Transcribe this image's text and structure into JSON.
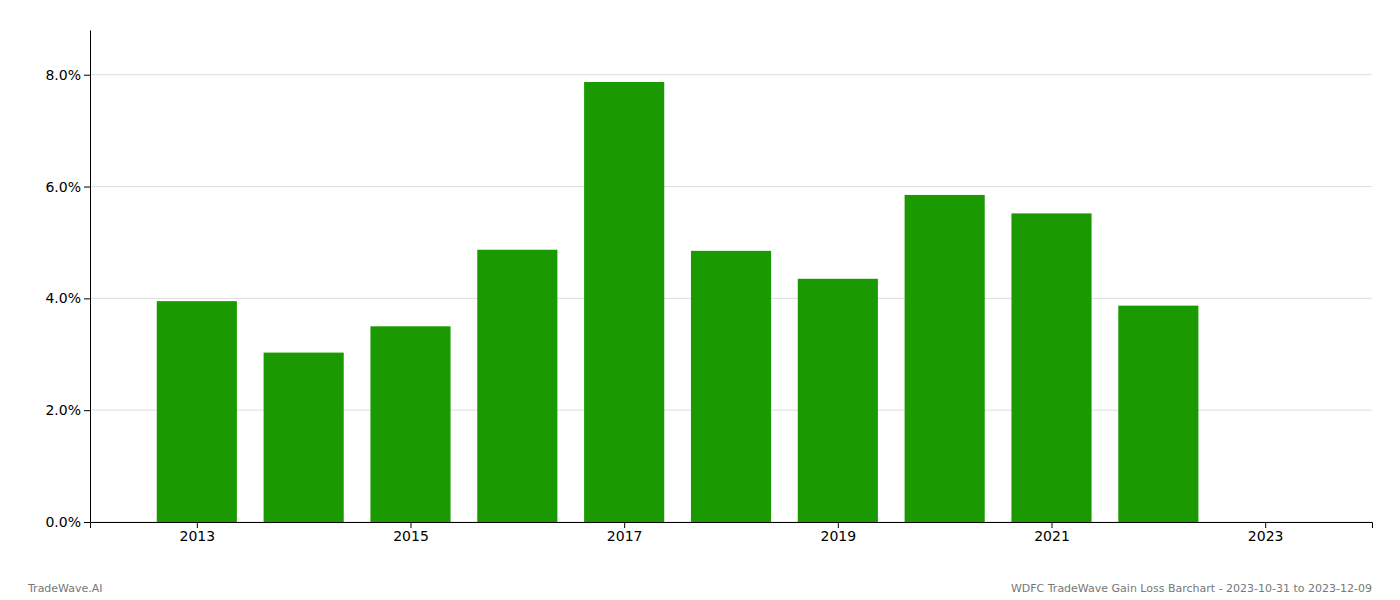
{
  "chart_data": {
    "type": "bar",
    "x": [
      2013,
      2014,
      2015,
      2016,
      2017,
      2018,
      2019,
      2020,
      2021,
      2022
    ],
    "values": [
      0.0395,
      0.0303,
      0.035,
      0.0487,
      0.0787,
      0.0485,
      0.0435,
      0.0585,
      0.0552,
      0.0387
    ],
    "color": "#1a9a00",
    "xlim": [
      2012.0,
      2024.0
    ],
    "xticks": [
      2013,
      2015,
      2017,
      2019,
      2021,
      2023
    ],
    "ylim": [
      0,
      0.088
    ],
    "yticks": [
      {
        "value": 0.0,
        "label": "0.0%"
      },
      {
        "value": 0.02,
        "label": "2.0%"
      },
      {
        "value": 0.04,
        "label": "4.0%"
      },
      {
        "value": 0.06,
        "label": "6.0%"
      },
      {
        "value": 0.08,
        "label": "8.0%"
      }
    ],
    "grid": true,
    "annotations": [
      "TradeWave.AI",
      "WDFC TradeWave Gain Loss Barchart - 2023-10-31 to 2023-12-09"
    ]
  }
}
